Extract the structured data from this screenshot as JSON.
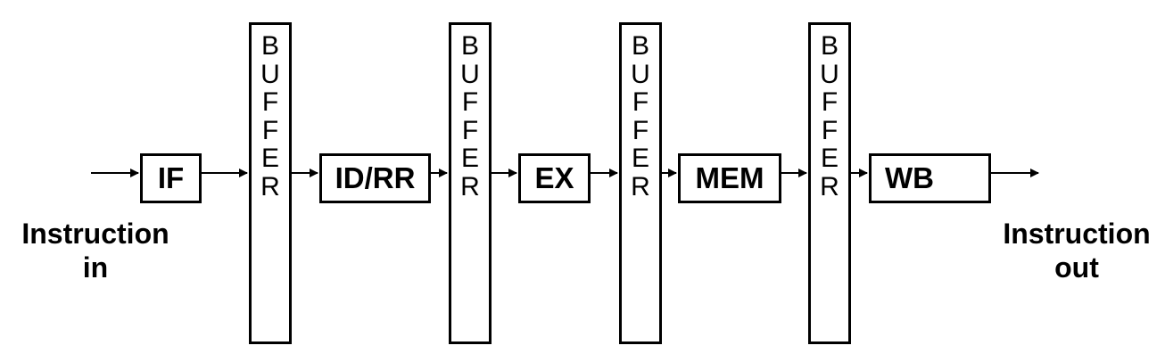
{
  "stages": [
    {
      "id": "if",
      "label": "IF"
    },
    {
      "id": "id-rr",
      "label": "ID/RR"
    },
    {
      "id": "ex",
      "label": "EX"
    },
    {
      "id": "mem",
      "label": "MEM"
    },
    {
      "id": "wb",
      "label": "WB"
    }
  ],
  "buffer_letters": [
    "B",
    "U",
    "F",
    "F",
    "E",
    "R"
  ],
  "input_label": {
    "line1": "Instruction",
    "line2": "in"
  },
  "output_label": {
    "line1": "Instruction",
    "line2": "out"
  }
}
